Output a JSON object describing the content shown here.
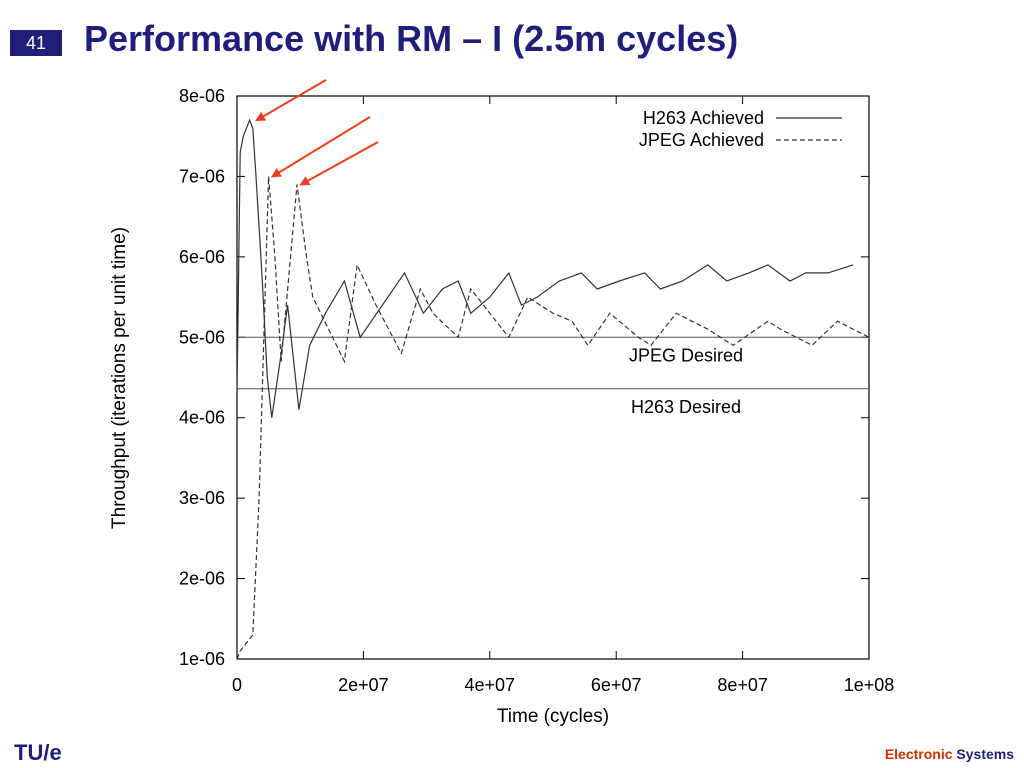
{
  "slide": {
    "number": "41",
    "title": "Performance with RM – I (2.5m cycles)",
    "footer_logo": "TU/e",
    "footer_right_a": "Electronic",
    "footer_right_b": "Systems"
  },
  "colors": {
    "title": "#1f1f7a",
    "accent": "#cc3300",
    "arrow": "#e8401c",
    "series": "#333333"
  },
  "chart_data": {
    "type": "line",
    "xlabel": "Time (cycles)",
    "ylabel": "Throughput (iterations per unit time)",
    "xlim": [
      0,
      100000000
    ],
    "ylim": [
      1e-06,
      8e-06
    ],
    "xticks": [
      0,
      20000000,
      40000000,
      60000000,
      80000000,
      100000000
    ],
    "xtick_labels": [
      "0",
      "2e+07",
      "4e+07",
      "6e+07",
      "8e+07",
      "1e+08"
    ],
    "yticks": [
      1e-06,
      2e-06,
      3e-06,
      4e-06,
      5e-06,
      6e-06,
      7e-06,
      8e-06
    ],
    "ytick_labels": [
      "1e-06",
      "2e-06",
      "3e-06",
      "4e-06",
      "5e-06",
      "6e-06",
      "7e-06",
      "8e-06"
    ],
    "legend": "top-right",
    "grid": false,
    "series": [
      {
        "name": "H263 Achieved",
        "style": "solid",
        "x": [
          0,
          500000,
          1000000,
          1500000,
          2000000,
          2500000,
          3000000,
          4000000,
          4800000,
          5500000,
          7000000,
          8000000,
          9800000,
          11500000,
          14000000,
          17000000,
          19500000,
          23000000,
          26500000,
          29500000,
          32500000,
          35000000,
          37000000,
          40000000,
          43000000,
          45000000,
          47500000,
          51000000,
          54500000,
          57000000,
          60500000,
          64500000,
          67000000,
          70500000,
          74500000,
          77500000,
          81000000,
          84000000,
          87500000,
          90000000,
          93500000,
          97500000
        ],
        "y": [
          4.3e-06,
          7.3e-06,
          7.5e-06,
          7.6e-06,
          7.7e-06,
          7.6e-06,
          7e-06,
          5.7e-06,
          4.5e-06,
          4e-06,
          4.8e-06,
          5.4e-06,
          4.1e-06,
          4.9e-06,
          5.3e-06,
          5.7e-06,
          5e-06,
          5.4e-06,
          5.8e-06,
          5.3e-06,
          5.6e-06,
          5.7e-06,
          5.3e-06,
          5.5e-06,
          5.8e-06,
          5.4e-06,
          5.5e-06,
          5.7e-06,
          5.8e-06,
          5.6e-06,
          5.7e-06,
          5.8e-06,
          5.6e-06,
          5.7e-06,
          5.9e-06,
          5.7e-06,
          5.8e-06,
          5.9e-06,
          5.7e-06,
          5.8e-06,
          5.8e-06,
          5.9e-06
        ]
      },
      {
        "name": "JPEG Achieved",
        "style": "dashed",
        "x": [
          0,
          500000,
          1500000,
          2500000,
          3500000,
          5000000,
          6000000,
          7000000,
          9500000,
          11000000,
          12000000,
          17000000,
          19000000,
          22000000,
          26000000,
          29000000,
          31000000,
          35000000,
          37000000,
          41000000,
          43000000,
          46000000,
          50000000,
          53000000,
          55500000,
          59000000,
          63500000,
          65500000,
          69500000,
          74500000,
          78500000,
          84000000,
          86000000,
          91000000,
          95000000,
          100000000
        ],
        "y": [
          1e-06,
          1.1e-06,
          1.2e-06,
          1.3e-06,
          3e-06,
          7e-06,
          6e-06,
          4.7e-06,
          6.9e-06,
          6e-06,
          5.5e-06,
          4.7e-06,
          5.9e-06,
          5.4e-06,
          4.8e-06,
          5.6e-06,
          5.3e-06,
          5e-06,
          5.6e-06,
          5.2e-06,
          5e-06,
          5.5e-06,
          5.3e-06,
          5.2e-06,
          4.9e-06,
          5.3e-06,
          5e-06,
          4.9e-06,
          5.3e-06,
          5.1e-06,
          4.9e-06,
          5.2e-06,
          5.1e-06,
          4.9e-06,
          5.2e-06,
          5e-06
        ]
      }
    ],
    "hlines": [
      {
        "label": "JPEG Desired",
        "y": 5e-06
      },
      {
        "label": "H263 Desired",
        "y": 4.36e-06
      }
    ],
    "annotations": {
      "arrows_point_to": [
        {
          "x": 2500000,
          "y": 7.7e-06
        },
        {
          "x": 5000000,
          "y": 7e-06
        },
        {
          "x": 9500000,
          "y": 6.9e-06
        }
      ]
    }
  }
}
